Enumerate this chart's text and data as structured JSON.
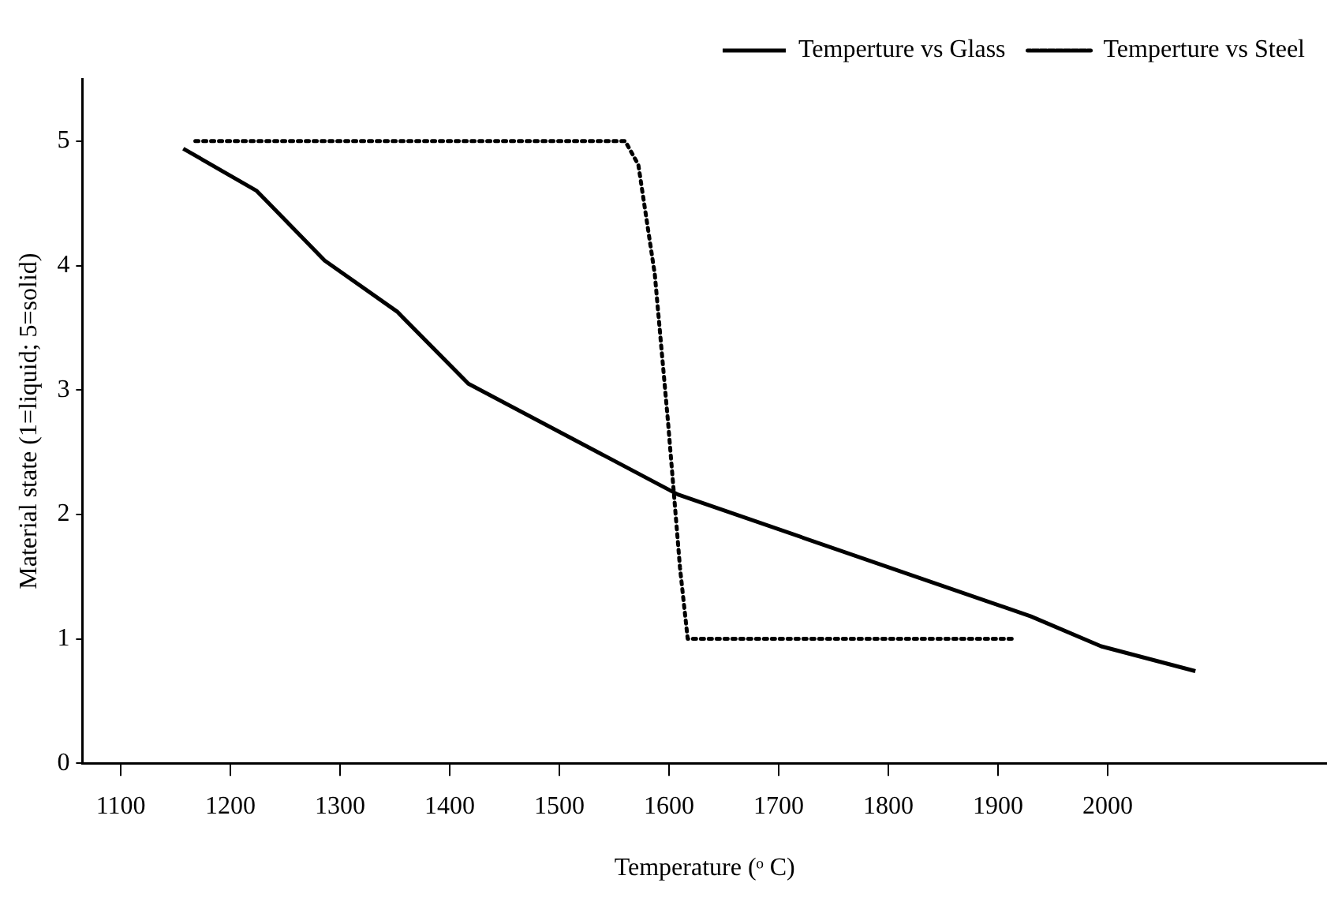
{
  "chart_data": {
    "type": "line",
    "xlabel": "Temperature (ᵒ C)",
    "ylabel": "Material state (1=liquid; 5=solid)",
    "xlim": [
      1065,
      2200
    ],
    "xticks": [
      1100,
      1200,
      1300,
      1400,
      1500,
      1600,
      1700,
      1800,
      1900,
      2000
    ],
    "ylim": [
      0,
      5.5
    ],
    "yticks": [
      0,
      1,
      2,
      3,
      4,
      5
    ],
    "grid": false,
    "legend": "top right",
    "marker": "none",
    "series": [
      {
        "name": "Temperture vs Glass",
        "color": "#000000",
        "line_style": "solid",
        "x": [
          1157,
          1224,
          1286,
          1352,
          1417,
          1608,
          1930,
          1994,
          2080
        ],
        "values": [
          4.94,
          4.6,
          4.04,
          3.63,
          3.05,
          2.16,
          1.18,
          0.94,
          0.74
        ]
      },
      {
        "name": "Temperture vs Steel",
        "color": "#000000",
        "line_style": "dotted",
        "x": [
          1168,
          1560,
          1572,
          1587,
          1599,
          1610,
          1617,
          1914
        ],
        "values": [
          5,
          5,
          4.81,
          3.93,
          2.75,
          1.57,
          1,
          1
        ]
      }
    ]
  }
}
